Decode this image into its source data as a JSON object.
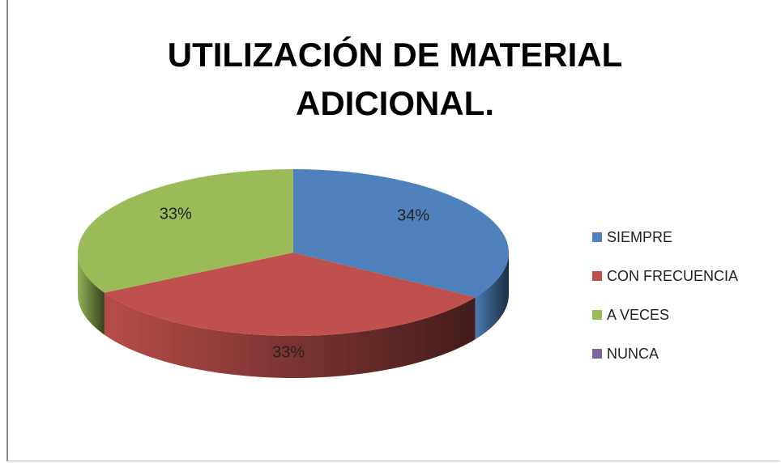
{
  "chart_data": {
    "type": "pie3d",
    "title": "UTILIZACIÓN DE MATERIAL ADICIONAL.",
    "categories": [
      "SIEMPRE",
      "CON FRECUENCIA",
      "A VECES",
      "NUNCA"
    ],
    "values": [
      34,
      33,
      33,
      0
    ],
    "value_labels": [
      "34%",
      "33%",
      "33%",
      null
    ],
    "colors": [
      "#4f81bd",
      "#c0504d",
      "#9bbb59",
      "#8064a2"
    ],
    "legend": "right"
  }
}
